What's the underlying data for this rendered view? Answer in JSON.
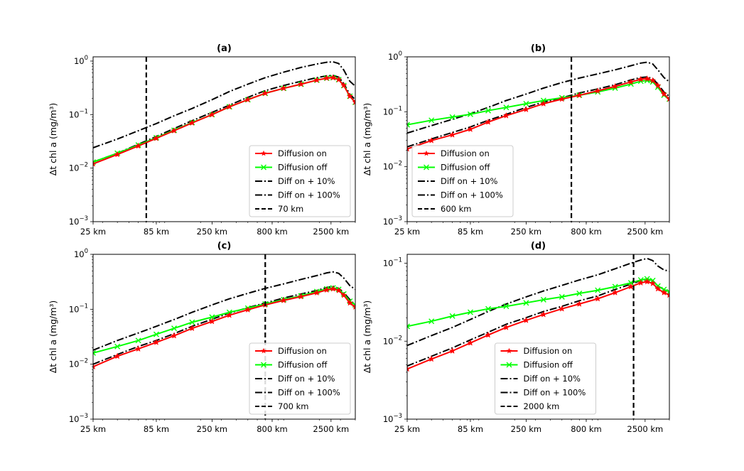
{
  "chart_data": [
    {
      "type": "line",
      "title": "(a)",
      "xscale": "log",
      "yscale": "log",
      "xlim": [
        25,
        4000
      ],
      "ylim": [
        0.001,
        1.2
      ],
      "xticks": [
        25,
        85,
        250,
        800,
        2500
      ],
      "xtick_labels": [
        "25 km",
        "85 km",
        "250 km",
        "800 km",
        "2500 km"
      ],
      "yticks": [
        0.001,
        0.01,
        0.1,
        1
      ],
      "ytick_labels": [
        [
          "10",
          "−3"
        ],
        [
          "10",
          "−2"
        ],
        [
          "10",
          "−1"
        ],
        [
          "10",
          "0"
        ]
      ],
      "ylabel": "Δt chl a (mg/m³)",
      "legend_position": "lower-right",
      "vline": {
        "x": 70,
        "label": "70 km"
      },
      "x": [
        25,
        40,
        60,
        85,
        120,
        170,
        250,
        350,
        500,
        700,
        1000,
        1400,
        1900,
        2300,
        2600,
        2900,
        3200,
        3600,
        4000
      ],
      "series": [
        {
          "name": "Diffusion on",
          "color": "#ff0000",
          "style": "solid",
          "marker": "star",
          "values": [
            0.012,
            0.018,
            0.026,
            0.036,
            0.05,
            0.07,
            0.1,
            0.14,
            0.19,
            0.25,
            0.31,
            0.37,
            0.44,
            0.48,
            0.49,
            0.45,
            0.35,
            0.22,
            0.17
          ]
        },
        {
          "name": "Diffusion off",
          "color": "#00ff00",
          "style": "solid",
          "marker": "x",
          "values": [
            0.013,
            0.019,
            0.027,
            0.037,
            0.051,
            0.071,
            0.1,
            0.14,
            0.19,
            0.25,
            0.31,
            0.37,
            0.44,
            0.48,
            0.49,
            0.45,
            0.35,
            0.22,
            0.17
          ]
        },
        {
          "name": "Diff on + 10%",
          "color": "#000000",
          "style": "dashdot",
          "marker": "none",
          "values": [
            0.013,
            0.019,
            0.028,
            0.039,
            0.055,
            0.077,
            0.11,
            0.15,
            0.21,
            0.28,
            0.35,
            0.42,
            0.49,
            0.53,
            0.54,
            0.5,
            0.38,
            0.24,
            0.19
          ]
        },
        {
          "name": "Diff on + 100%",
          "color": "#000000",
          "style": "dashdot",
          "marker": "none",
          "values": [
            0.024,
            0.035,
            0.05,
            0.068,
            0.095,
            0.13,
            0.19,
            0.27,
            0.37,
            0.49,
            0.62,
            0.76,
            0.88,
            0.95,
            0.97,
            0.9,
            0.68,
            0.42,
            0.34
          ]
        }
      ]
    },
    {
      "type": "line",
      "title": "(b)",
      "xscale": "log",
      "yscale": "log",
      "xlim": [
        25,
        4000
      ],
      "ylim": [
        0.001,
        1
      ],
      "xticks": [
        25,
        85,
        250,
        800,
        2500
      ],
      "xtick_labels": [
        "25 km",
        "85 km",
        "250 km",
        "800 km",
        "2500 km"
      ],
      "yticks": [
        0.001,
        0.01,
        0.1,
        1
      ],
      "ytick_labels": [
        [
          "10",
          "−3"
        ],
        [
          "10",
          "−2"
        ],
        [
          "10",
          "−1"
        ],
        [
          "10",
          "0"
        ]
      ],
      "ylabel": "Δt chl a (mg/m³)",
      "legend_position": "lower-left",
      "vline": {
        "x": 600,
        "label": "600 km"
      },
      "x": [
        25,
        40,
        60,
        85,
        120,
        170,
        250,
        350,
        500,
        700,
        1000,
        1400,
        1900,
        2300,
        2600,
        2900,
        3200,
        3600,
        4000
      ],
      "series": [
        {
          "name": "Diffusion on",
          "color": "#ff0000",
          "style": "solid",
          "marker": "star",
          "values": [
            0.021,
            0.03,
            0.038,
            0.048,
            0.065,
            0.085,
            0.11,
            0.14,
            0.17,
            0.2,
            0.24,
            0.29,
            0.35,
            0.39,
            0.4,
            0.37,
            0.3,
            0.21,
            0.17
          ]
        },
        {
          "name": "Diffusion off",
          "color": "#00ff00",
          "style": "solid",
          "marker": "x",
          "values": [
            0.058,
            0.07,
            0.08,
            0.09,
            0.105,
            0.12,
            0.14,
            0.16,
            0.18,
            0.2,
            0.23,
            0.27,
            0.32,
            0.36,
            0.37,
            0.35,
            0.28,
            0.2,
            0.17
          ]
        },
        {
          "name": "Diff on + 10%",
          "color": "#000000",
          "style": "dashdot",
          "marker": "none",
          "values": [
            0.023,
            0.032,
            0.042,
            0.053,
            0.07,
            0.09,
            0.12,
            0.15,
            0.18,
            0.22,
            0.26,
            0.31,
            0.38,
            0.42,
            0.43,
            0.4,
            0.32,
            0.23,
            0.19
          ]
        },
        {
          "name": "Diff on + 100%",
          "color": "#000000",
          "style": "dashdot",
          "marker": "none",
          "values": [
            0.041,
            0.056,
            0.073,
            0.092,
            0.12,
            0.16,
            0.21,
            0.27,
            0.34,
            0.41,
            0.49,
            0.58,
            0.69,
            0.77,
            0.8,
            0.74,
            0.58,
            0.42,
            0.35
          ]
        }
      ]
    },
    {
      "type": "line",
      "title": "(c)",
      "xscale": "log",
      "yscale": "log",
      "xlim": [
        25,
        4000
      ],
      "ylim": [
        0.001,
        1
      ],
      "xticks": [
        25,
        85,
        250,
        800,
        2500
      ],
      "xtick_labels": [
        "25 km",
        "85 km",
        "250 km",
        "800 km",
        "2500 km"
      ],
      "yticks": [
        0.001,
        0.01,
        0.1,
        1
      ],
      "ytick_labels": [
        [
          "10",
          "−3"
        ],
        [
          "10",
          "−2"
        ],
        [
          "10",
          "−1"
        ],
        [
          "10",
          "0"
        ]
      ],
      "ylabel": "Δt chl a (mg/m³)",
      "legend_position": "lower-right",
      "vline": {
        "x": 700,
        "label": "700 km"
      },
      "x": [
        25,
        40,
        60,
        85,
        120,
        170,
        250,
        350,
        500,
        700,
        1000,
        1400,
        1900,
        2300,
        2600,
        2900,
        3200,
        3600,
        4000
      ],
      "series": [
        {
          "name": "Diffusion on",
          "color": "#ff0000",
          "style": "solid",
          "marker": "star",
          "values": [
            0.009,
            0.014,
            0.019,
            0.025,
            0.033,
            0.045,
            0.06,
            0.078,
            0.098,
            0.12,
            0.145,
            0.17,
            0.2,
            0.225,
            0.235,
            0.22,
            0.18,
            0.13,
            0.11
          ]
        },
        {
          "name": "Diffusion off",
          "color": "#00ff00",
          "style": "solid",
          "marker": "x",
          "values": [
            0.016,
            0.021,
            0.027,
            0.035,
            0.045,
            0.058,
            0.072,
            0.088,
            0.105,
            0.125,
            0.15,
            0.175,
            0.21,
            0.235,
            0.245,
            0.23,
            0.19,
            0.14,
            0.12
          ]
        },
        {
          "name": "Diff on + 10%",
          "color": "#000000",
          "style": "dashdot",
          "marker": "none",
          "values": [
            0.01,
            0.015,
            0.021,
            0.027,
            0.036,
            0.049,
            0.066,
            0.085,
            0.107,
            0.13,
            0.16,
            0.19,
            0.22,
            0.25,
            0.26,
            0.24,
            0.2,
            0.15,
            0.12
          ]
        },
        {
          "name": "Diff on + 100%",
          "color": "#000000",
          "style": "dashdot",
          "marker": "none",
          "values": [
            0.018,
            0.027,
            0.037,
            0.049,
            0.065,
            0.088,
            0.12,
            0.155,
            0.195,
            0.24,
            0.29,
            0.35,
            0.41,
            0.46,
            0.48,
            0.45,
            0.37,
            0.27,
            0.23
          ]
        }
      ]
    },
    {
      "type": "line",
      "title": "(d)",
      "xscale": "log",
      "yscale": "log",
      "xlim": [
        25,
        4000
      ],
      "ylim": [
        0.001,
        0.13
      ],
      "xticks": [
        25,
        85,
        250,
        800,
        2500
      ],
      "xtick_labels": [
        "25 km",
        "85 km",
        "250 km",
        "800 km",
        "2500 km"
      ],
      "yticks": [
        0.001,
        0.01,
        0.1
      ],
      "ytick_labels": [
        [
          "10",
          "−3"
        ],
        [
          "10",
          "−2"
        ],
        [
          "10",
          "−1"
        ]
      ],
      "ylabel": "Δt chl a (mg/m³)",
      "legend_position": "lower-center",
      "vline": {
        "x": 2000,
        "label": "2000 km"
      },
      "x": [
        25,
        40,
        60,
        85,
        120,
        170,
        250,
        350,
        500,
        700,
        1000,
        1400,
        1900,
        2300,
        2600,
        2900,
        3200,
        3600,
        4000
      ],
      "series": [
        {
          "name": "Diffusion on",
          "color": "#ff0000",
          "style": "solid",
          "marker": "star",
          "values": [
            0.0044,
            0.0059,
            0.0075,
            0.0095,
            0.012,
            0.015,
            0.0185,
            0.022,
            0.026,
            0.03,
            0.035,
            0.042,
            0.05,
            0.056,
            0.058,
            0.055,
            0.047,
            0.042,
            0.039
          ]
        },
        {
          "name": "Diffusion off",
          "color": "#00ff00",
          "style": "solid",
          "marker": "x",
          "values": [
            0.0155,
            0.018,
            0.021,
            0.0235,
            0.026,
            0.028,
            0.031,
            0.034,
            0.037,
            0.041,
            0.045,
            0.05,
            0.056,
            0.061,
            0.063,
            0.06,
            0.051,
            0.046,
            0.043
          ]
        },
        {
          "name": "Diff on + 10%",
          "color": "#000000",
          "style": "dashdot",
          "marker": "none",
          "values": [
            0.0048,
            0.0064,
            0.0082,
            0.0104,
            0.013,
            0.0165,
            0.02,
            0.024,
            0.028,
            0.033,
            0.038,
            0.046,
            0.054,
            0.06,
            0.063,
            0.06,
            0.051,
            0.046,
            0.043
          ]
        },
        {
          "name": "Diff on + 100%",
          "color": "#000000",
          "style": "dashdot",
          "marker": "none",
          "values": [
            0.0088,
            0.0118,
            0.015,
            0.019,
            0.024,
            0.03,
            0.037,
            0.044,
            0.052,
            0.061,
            0.071,
            0.085,
            0.1,
            0.11,
            0.115,
            0.108,
            0.092,
            0.082,
            0.079
          ]
        }
      ]
    }
  ]
}
